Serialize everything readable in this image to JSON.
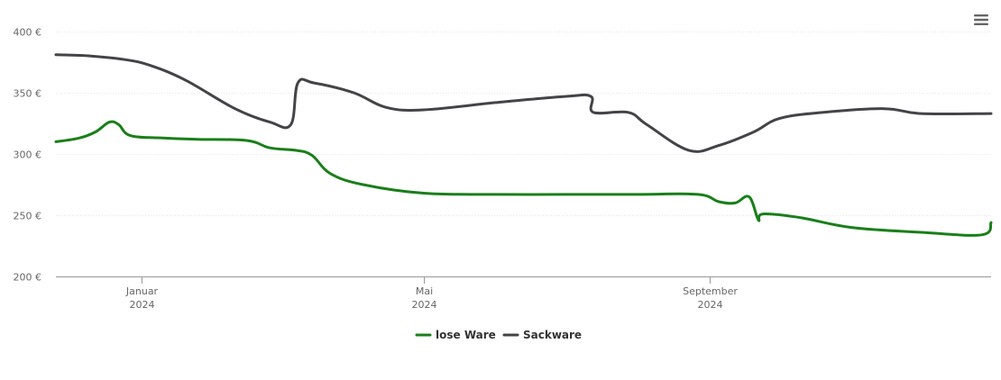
{
  "chart_data": {
    "type": "line",
    "x_axis": {
      "type": "date",
      "min": "2023-11-25",
      "max": "2024-12-31",
      "ticks": [
        {
          "date": "2024-01-01",
          "label": "Januar",
          "sublabel": "2024"
        },
        {
          "date": "2024-05-01",
          "label": "Mai",
          "sublabel": "2024"
        },
        {
          "date": "2024-09-01",
          "label": "September",
          "sublabel": "2024"
        }
      ]
    },
    "y_axis": {
      "min": 200,
      "max": 400,
      "ticks": [
        {
          "value": 200,
          "label": "200 €"
        },
        {
          "value": 250,
          "label": "250 €"
        },
        {
          "value": 300,
          "label": "300 €"
        },
        {
          "value": 350,
          "label": "350 €"
        },
        {
          "value": 400,
          "label": "400 €"
        }
      ]
    },
    "grid": true,
    "legend": "bottom-center",
    "series": [
      {
        "name": "lose Ware",
        "color": "#1a7f1a",
        "points": [
          [
            "2023-11-25",
            310
          ],
          [
            "2023-12-05",
            313
          ],
          [
            "2023-12-12",
            318
          ],
          [
            "2023-12-18",
            326
          ],
          [
            "2023-12-22",
            324
          ],
          [
            "2023-12-27",
            315
          ],
          [
            "2024-01-10",
            313
          ],
          [
            "2024-01-25",
            312
          ],
          [
            "2024-02-15",
            311
          ],
          [
            "2024-02-25",
            305
          ],
          [
            "2024-03-07",
            303
          ],
          [
            "2024-03-14",
            299
          ],
          [
            "2024-03-22",
            284
          ],
          [
            "2024-04-05",
            275
          ],
          [
            "2024-05-01",
            268
          ],
          [
            "2024-06-01",
            267
          ],
          [
            "2024-07-01",
            267
          ],
          [
            "2024-08-01",
            267
          ],
          [
            "2024-08-27",
            267
          ],
          [
            "2024-09-05",
            261
          ],
          [
            "2024-09-12",
            260
          ],
          [
            "2024-09-18",
            265
          ],
          [
            "2024-09-22",
            246
          ],
          [
            "2024-09-24",
            251
          ],
          [
            "2024-10-10",
            248
          ],
          [
            "2024-11-01",
            240
          ],
          [
            "2024-12-01",
            236
          ],
          [
            "2024-12-27",
            234
          ],
          [
            "2024-12-31",
            244
          ]
        ]
      },
      {
        "name": "Sackware",
        "color": "#434348",
        "points": [
          [
            "2023-11-25",
            381
          ],
          [
            "2023-12-10",
            380
          ],
          [
            "2023-12-25",
            377
          ],
          [
            "2024-01-05",
            372
          ],
          [
            "2024-01-20",
            360
          ],
          [
            "2024-02-10",
            337
          ],
          [
            "2024-02-25",
            326
          ],
          [
            "2024-03-05",
            324
          ],
          [
            "2024-03-08",
            358
          ],
          [
            "2024-03-15",
            358
          ],
          [
            "2024-04-01",
            350
          ],
          [
            "2024-04-15",
            338
          ],
          [
            "2024-05-01",
            336
          ],
          [
            "2024-06-01",
            342
          ],
          [
            "2024-07-01",
            347
          ],
          [
            "2024-07-12",
            347
          ],
          [
            "2024-07-13",
            334
          ],
          [
            "2024-07-28",
            334
          ],
          [
            "2024-08-05",
            324
          ],
          [
            "2024-08-23",
            303
          ],
          [
            "2024-09-05",
            307
          ],
          [
            "2024-09-20",
            318
          ],
          [
            "2024-10-01",
            329
          ],
          [
            "2024-10-20",
            334
          ],
          [
            "2024-11-15",
            337
          ],
          [
            "2024-12-01",
            333
          ],
          [
            "2024-12-31",
            333
          ]
        ]
      }
    ]
  },
  "menu": {
    "icon": "hamburger-menu-icon"
  }
}
